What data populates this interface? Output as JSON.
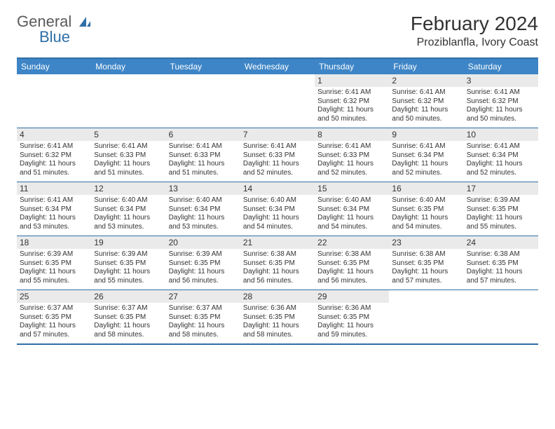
{
  "logo": {
    "text1": "General",
    "text2": "Blue"
  },
  "title": "February 2024",
  "location": "Proziblanfla, Ivory Coast",
  "colors": {
    "header_bg": "#3d85c6",
    "header_text": "#ffffff",
    "border": "#2f6fa7",
    "daynum_bg": "#eaeaea",
    "text": "#333333",
    "logo_gray": "#5a5a5a",
    "logo_blue": "#2f6fa7"
  },
  "day_names": [
    "Sunday",
    "Monday",
    "Tuesday",
    "Wednesday",
    "Thursday",
    "Friday",
    "Saturday"
  ],
  "weeks": [
    [
      null,
      null,
      null,
      null,
      {
        "n": "1",
        "sr": "6:41 AM",
        "ss": "6:32 PM",
        "dl": "11 hours and 50 minutes."
      },
      {
        "n": "2",
        "sr": "6:41 AM",
        "ss": "6:32 PM",
        "dl": "11 hours and 50 minutes."
      },
      {
        "n": "3",
        "sr": "6:41 AM",
        "ss": "6:32 PM",
        "dl": "11 hours and 50 minutes."
      }
    ],
    [
      {
        "n": "4",
        "sr": "6:41 AM",
        "ss": "6:32 PM",
        "dl": "11 hours and 51 minutes."
      },
      {
        "n": "5",
        "sr": "6:41 AM",
        "ss": "6:33 PM",
        "dl": "11 hours and 51 minutes."
      },
      {
        "n": "6",
        "sr": "6:41 AM",
        "ss": "6:33 PM",
        "dl": "11 hours and 51 minutes."
      },
      {
        "n": "7",
        "sr": "6:41 AM",
        "ss": "6:33 PM",
        "dl": "11 hours and 52 minutes."
      },
      {
        "n": "8",
        "sr": "6:41 AM",
        "ss": "6:33 PM",
        "dl": "11 hours and 52 minutes."
      },
      {
        "n": "9",
        "sr": "6:41 AM",
        "ss": "6:34 PM",
        "dl": "11 hours and 52 minutes."
      },
      {
        "n": "10",
        "sr": "6:41 AM",
        "ss": "6:34 PM",
        "dl": "11 hours and 52 minutes."
      }
    ],
    [
      {
        "n": "11",
        "sr": "6:41 AM",
        "ss": "6:34 PM",
        "dl": "11 hours and 53 minutes."
      },
      {
        "n": "12",
        "sr": "6:40 AM",
        "ss": "6:34 PM",
        "dl": "11 hours and 53 minutes."
      },
      {
        "n": "13",
        "sr": "6:40 AM",
        "ss": "6:34 PM",
        "dl": "11 hours and 53 minutes."
      },
      {
        "n": "14",
        "sr": "6:40 AM",
        "ss": "6:34 PM",
        "dl": "11 hours and 54 minutes."
      },
      {
        "n": "15",
        "sr": "6:40 AM",
        "ss": "6:34 PM",
        "dl": "11 hours and 54 minutes."
      },
      {
        "n": "16",
        "sr": "6:40 AM",
        "ss": "6:35 PM",
        "dl": "11 hours and 54 minutes."
      },
      {
        "n": "17",
        "sr": "6:39 AM",
        "ss": "6:35 PM",
        "dl": "11 hours and 55 minutes."
      }
    ],
    [
      {
        "n": "18",
        "sr": "6:39 AM",
        "ss": "6:35 PM",
        "dl": "11 hours and 55 minutes."
      },
      {
        "n": "19",
        "sr": "6:39 AM",
        "ss": "6:35 PM",
        "dl": "11 hours and 55 minutes."
      },
      {
        "n": "20",
        "sr": "6:39 AM",
        "ss": "6:35 PM",
        "dl": "11 hours and 56 minutes."
      },
      {
        "n": "21",
        "sr": "6:38 AM",
        "ss": "6:35 PM",
        "dl": "11 hours and 56 minutes."
      },
      {
        "n": "22",
        "sr": "6:38 AM",
        "ss": "6:35 PM",
        "dl": "11 hours and 56 minutes."
      },
      {
        "n": "23",
        "sr": "6:38 AM",
        "ss": "6:35 PM",
        "dl": "11 hours and 57 minutes."
      },
      {
        "n": "24",
        "sr": "6:38 AM",
        "ss": "6:35 PM",
        "dl": "11 hours and 57 minutes."
      }
    ],
    [
      {
        "n": "25",
        "sr": "6:37 AM",
        "ss": "6:35 PM",
        "dl": "11 hours and 57 minutes."
      },
      {
        "n": "26",
        "sr": "6:37 AM",
        "ss": "6:35 PM",
        "dl": "11 hours and 58 minutes."
      },
      {
        "n": "27",
        "sr": "6:37 AM",
        "ss": "6:35 PM",
        "dl": "11 hours and 58 minutes."
      },
      {
        "n": "28",
        "sr": "6:36 AM",
        "ss": "6:35 PM",
        "dl": "11 hours and 58 minutes."
      },
      {
        "n": "29",
        "sr": "6:36 AM",
        "ss": "6:35 PM",
        "dl": "11 hours and 59 minutes."
      },
      null,
      null
    ]
  ],
  "labels": {
    "sunrise": "Sunrise:",
    "sunset": "Sunset:",
    "daylight": "Daylight:"
  }
}
